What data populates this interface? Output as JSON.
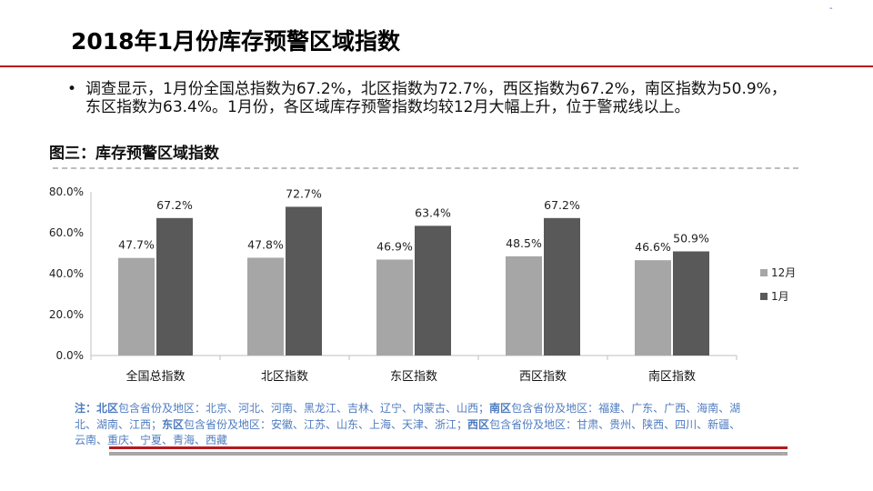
{
  "title": "2018年1月份库存预警区域指数",
  "corner_mark": "-",
  "bullet": {
    "symbol": "•",
    "text": "调查显示，1月份全国总指数为67.2%，北区指数为72.7%，西区指数为67.2%，南区指数为50.9%，东区指数为63.4%。1月份，各区域库存预警指数均较12月大幅上升，位于警戒线以上。"
  },
  "chart_caption": "图三：库存预警区域指数",
  "colors": {
    "dec": "#a6a6a6",
    "jan": "#595959",
    "accent": "#b5191d",
    "note": "#4f7cc0"
  },
  "chart_data": {
    "type": "bar",
    "title": "图三：库存预警区域指数",
    "categories": [
      "全国总指数",
      "北区指数",
      "东区指数",
      "西区指数",
      "南区指数"
    ],
    "series": [
      {
        "name": "12月",
        "values": [
          47.7,
          47.8,
          46.9,
          48.5,
          46.6
        ],
        "labels": [
          "47.7%",
          "47.8%",
          "46.9%",
          "48.5%",
          "46.6%"
        ]
      },
      {
        "name": "1月",
        "values": [
          67.2,
          72.7,
          63.4,
          67.2,
          50.9
        ],
        "labels": [
          "67.2%",
          "72.7%",
          "63.4%",
          "67.2%",
          "50.9%"
        ]
      }
    ],
    "ylim": [
      0,
      80
    ],
    "yticks": [
      0,
      20,
      40,
      60,
      80
    ],
    "ytick_labels": [
      "0.0%",
      "20.0%",
      "40.0%",
      "60.0%",
      "80.0%"
    ],
    "xlabel": "",
    "ylabel": "",
    "legend": "right",
    "grid": false
  },
  "note": {
    "prefix": "注：",
    "segments": [
      {
        "region": "北区",
        "text": "包含省份及地区：北京、河北、河南、黑龙江、吉林、辽宁、内蒙古、山西；"
      },
      {
        "region": "南区",
        "text": "包含省份及地区：福建、广东、广西、海南、湖北、湖南、江西；"
      },
      {
        "region": "东区",
        "text": "包含省份及地区：安徽、江苏、山东、上海、天津、浙江；"
      },
      {
        "region": "西区",
        "text": "包含省份及地区：甘肃、贵州、陕西、四川、新疆、云南、重庆、宁夏、青海、西藏"
      }
    ]
  },
  "footer_mark": "·"
}
